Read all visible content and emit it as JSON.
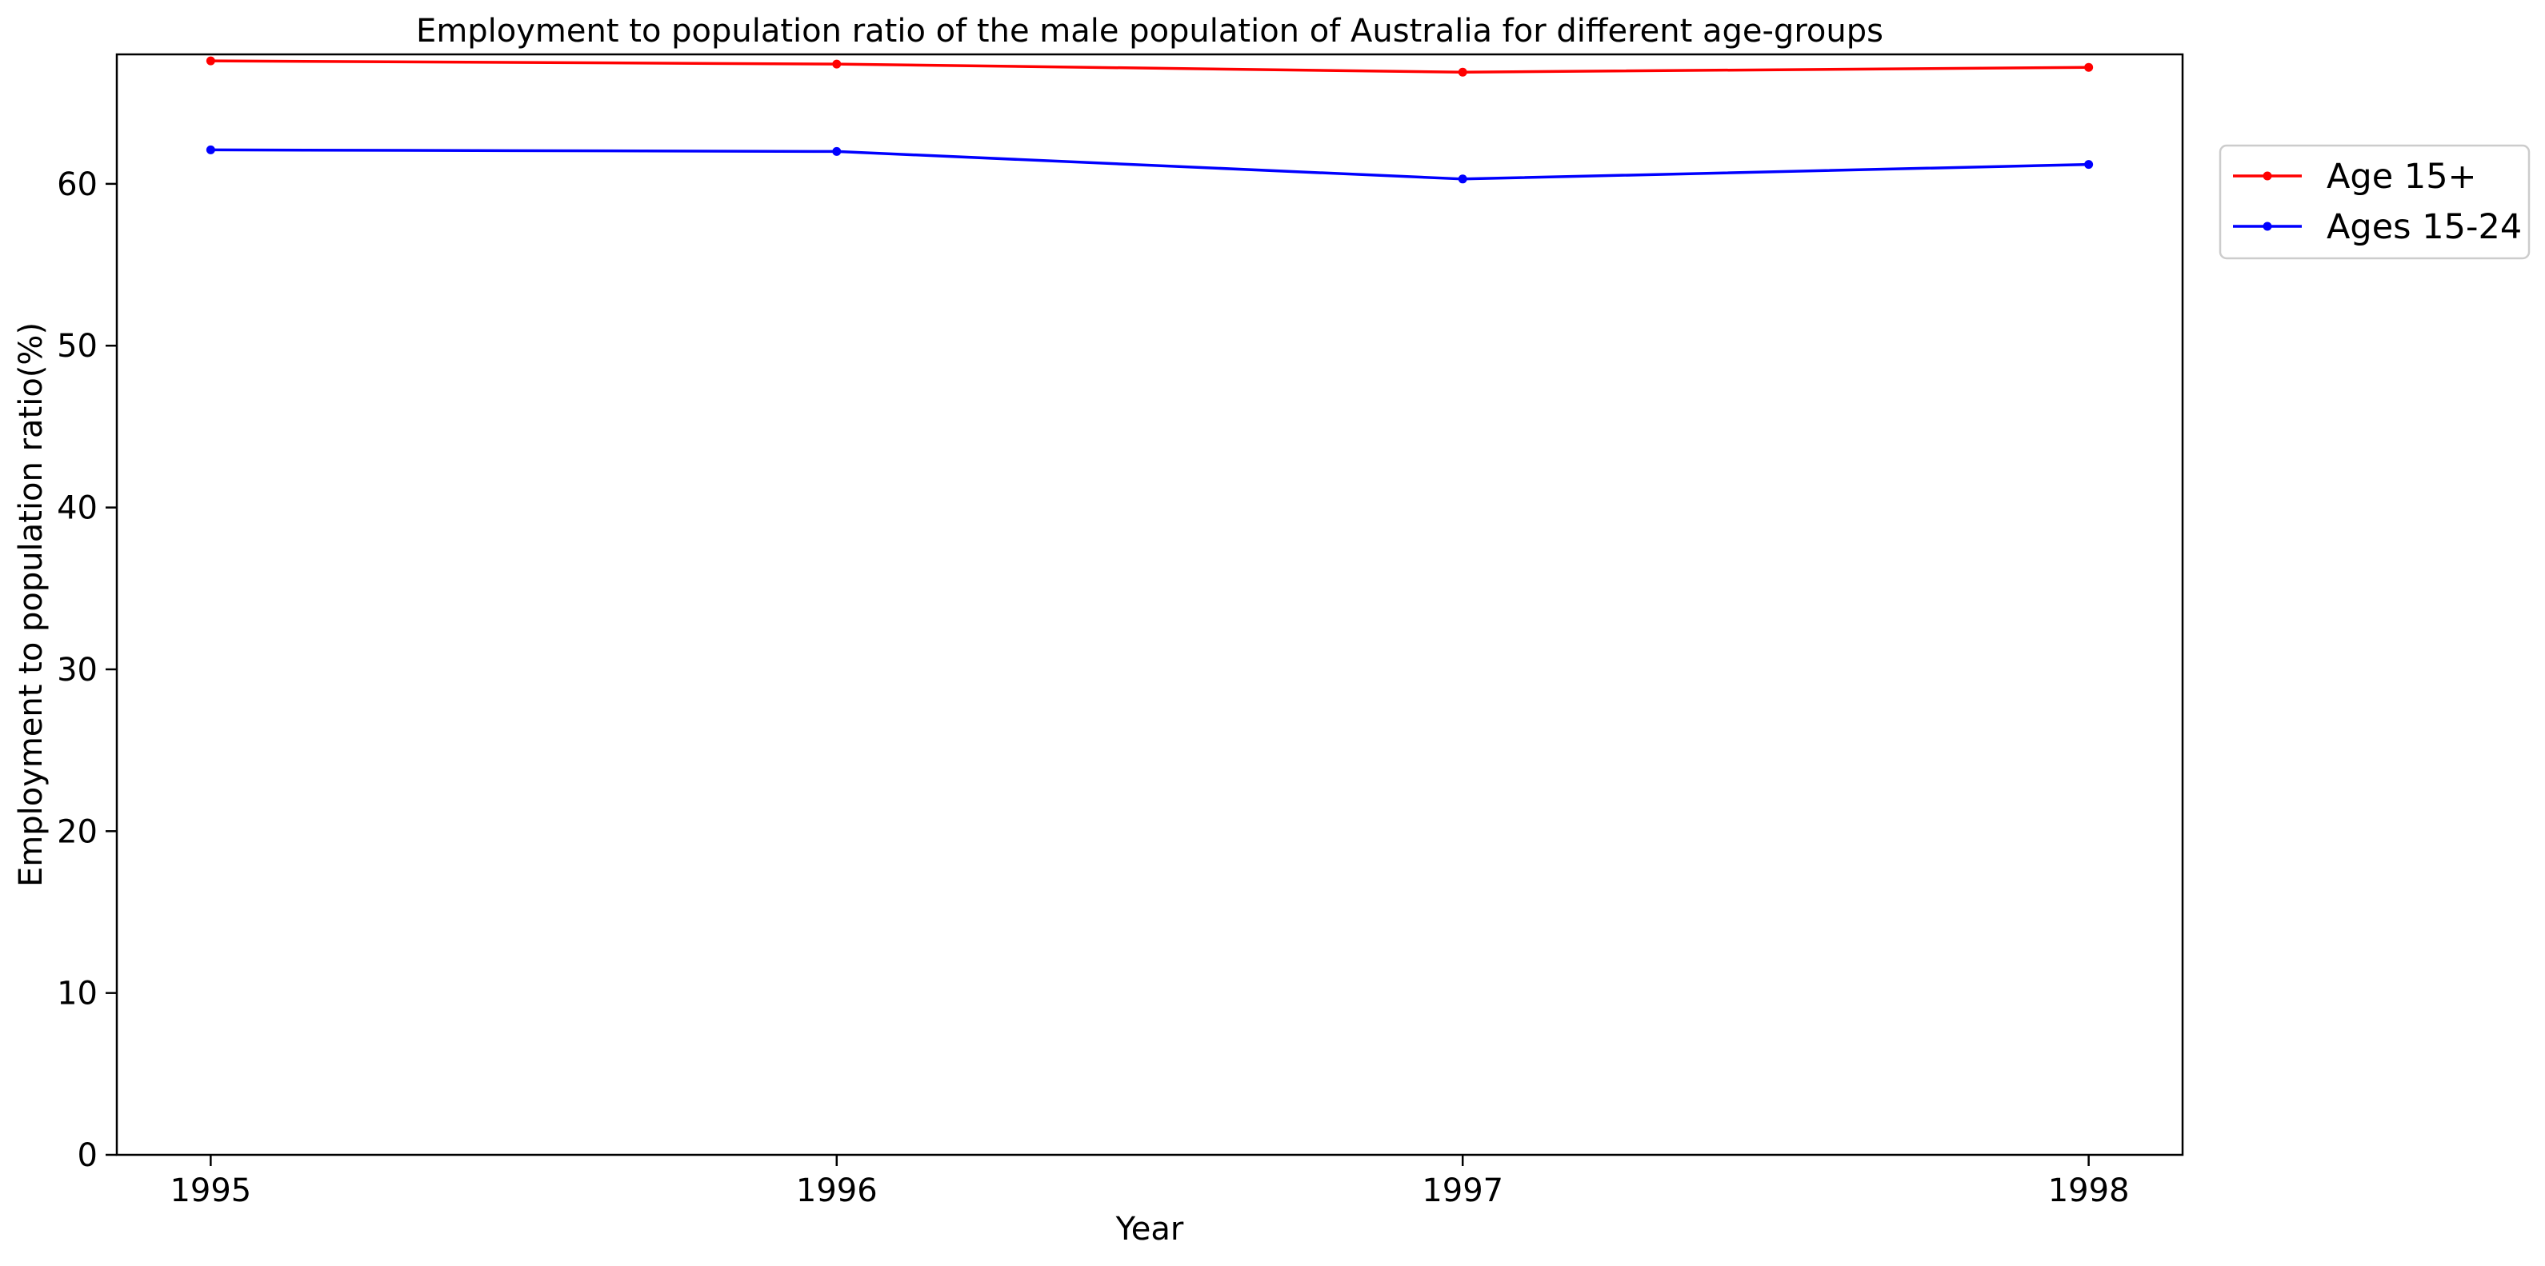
{
  "chart_data": {
    "type": "line",
    "title": "Employment to population ratio of the male population of Australia for different age-groups",
    "xlabel": "Year",
    "ylabel": "Employment to population ratio(%)",
    "x": [
      "1995",
      "1996",
      "1997",
      "1998"
    ],
    "xlim": [
      1994.85,
      1998.15
    ],
    "ylim": [
      0,
      68
    ],
    "yticks": [
      "0",
      "10",
      "20",
      "30",
      "40",
      "50",
      "60"
    ],
    "grid": false,
    "legend_position": "outside-top-right",
    "series": [
      {
        "name": "Age 15+",
        "color": "#ff0000",
        "values": [
          67.6,
          67.4,
          66.9,
          67.2
        ]
      },
      {
        "name": "Ages 15-24",
        "color": "#0000ff",
        "values": [
          62.1,
          62.0,
          60.3,
          61.2
        ]
      }
    ]
  }
}
